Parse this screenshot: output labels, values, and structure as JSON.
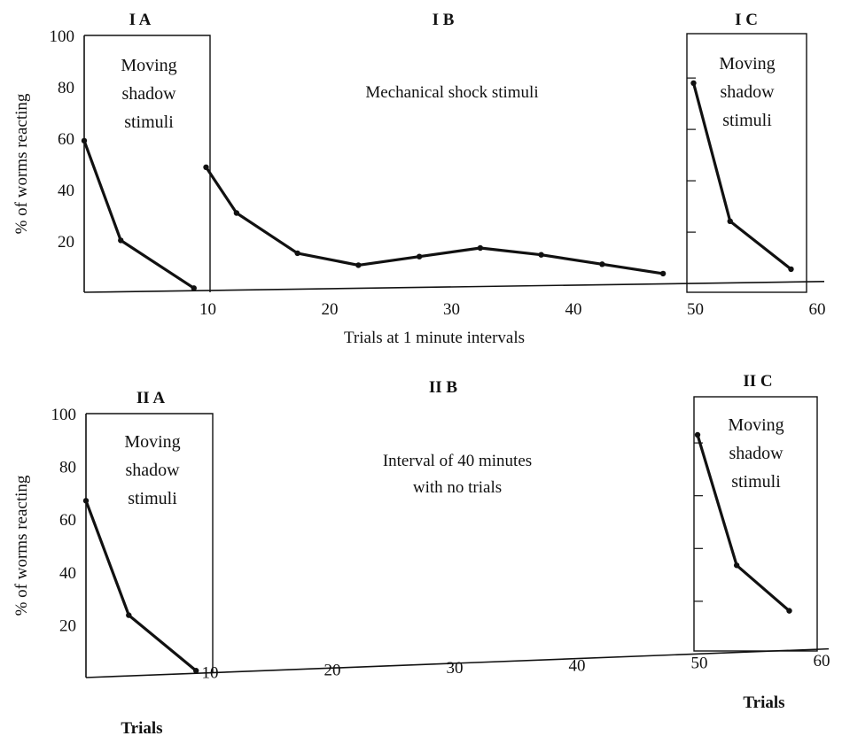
{
  "chart_data": [
    {
      "type": "line",
      "xlabel": "Trials at 1 minute intervals",
      "ylabel": "% of worms reacting",
      "xlim": [
        0,
        60
      ],
      "ylim": [
        0,
        100
      ],
      "x_ticks": [
        10,
        20,
        30,
        40,
        50,
        60
      ],
      "y_ticks": [
        20,
        40,
        60,
        80,
        100
      ],
      "grid": false,
      "panels": [
        {
          "label": "I A",
          "text": [
            "Moving",
            "shadow",
            "stimuli"
          ]
        },
        {
          "label": "I B",
          "text": [
            "Mechanical shock stimuli"
          ]
        },
        {
          "label": "I C",
          "text": [
            "Moving",
            "shadow",
            "stimuli"
          ]
        }
      ],
      "series": [
        {
          "x": [
            0,
            3,
            9
          ],
          "values": [
            59,
            20,
            1
          ]
        },
        {
          "x": [
            10,
            12.5,
            17.5,
            22.5,
            27.5,
            32.5,
            37.5,
            42.5,
            47.5
          ],
          "values": [
            48,
            30,
            14,
            9,
            12,
            15,
            12,
            8,
            4
          ]
        },
        {
          "x": [
            50,
            53,
            58
          ],
          "values": [
            78,
            24,
            5
          ]
        }
      ]
    },
    {
      "type": "line",
      "xlabel": "",
      "ylabel": "% of worms reacting",
      "xlim": [
        0,
        60
      ],
      "ylim": [
        0,
        100
      ],
      "x_ticks": [
        10,
        20,
        30,
        40,
        50,
        60
      ],
      "y_ticks": [
        20,
        40,
        60,
        80,
        100
      ],
      "grid": false,
      "panels": [
        {
          "label": "II A",
          "text": [
            "Moving",
            "shadow",
            "stimuli"
          ],
          "footer": "Trials"
        },
        {
          "label": "II B",
          "text": [
            "Interval of 40 minutes",
            "with no trials"
          ]
        },
        {
          "label": "II C",
          "text": [
            "Moving",
            "shadow",
            "stimuli"
          ],
          "footer": "Trials"
        }
      ],
      "series": [
        {
          "x": [
            0,
            3.5,
            9
          ],
          "values": [
            67,
            23,
            1
          ]
        },
        {
          "x": [
            50,
            53.2,
            57.5
          ],
          "values": [
            83,
            33,
            15
          ]
        }
      ]
    }
  ]
}
